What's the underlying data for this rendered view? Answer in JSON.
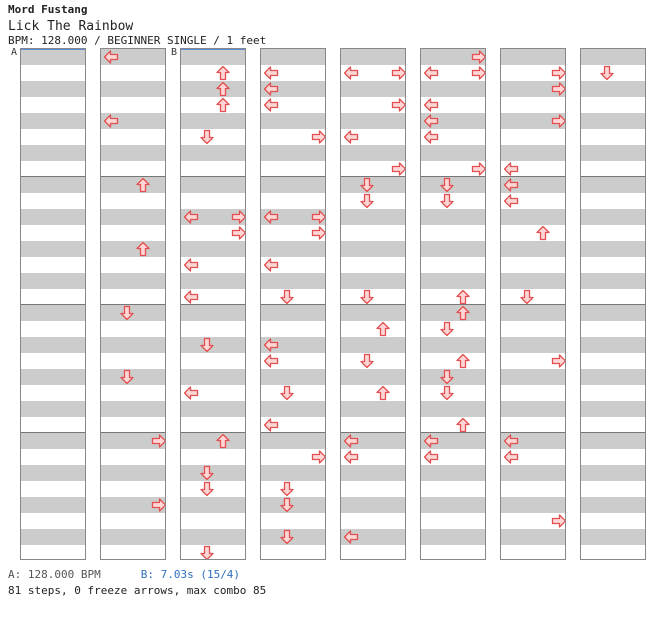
{
  "header": {
    "artist": "Mord Fustang",
    "title": "Lick The Rainbow",
    "info": "BPM: 128.000 / BEGINNER SINGLE / 1 feet"
  },
  "markers": {
    "a": "A",
    "b": "B"
  },
  "footer": {
    "bpm_a": "A: 128.000 BPM",
    "bpm_b": "B: 7.03s (15/4)",
    "stats": "81 steps, 0 freeze arrows, max combo 85"
  },
  "colors": {
    "arrow_fill": "#ffd6d6",
    "arrow_stroke": "#e05050",
    "stripe": "#cccccc"
  },
  "chart": {
    "columns": 8,
    "rows_per_column": 32,
    "lanes": [
      "left",
      "down",
      "up",
      "right"
    ],
    "notes": [
      [],
      [
        [
          0,
          "left"
        ],
        [
          4,
          "left"
        ],
        [
          8,
          "up"
        ],
        [
          12,
          "up"
        ],
        [
          16,
          "down"
        ],
        [
          20,
          "down"
        ],
        [
          24,
          "right"
        ],
        [
          28,
          "right"
        ]
      ],
      [
        [
          1,
          "up"
        ],
        [
          2,
          "up"
        ],
        [
          3,
          "up"
        ],
        [
          5,
          "down"
        ],
        [
          10,
          "left"
        ],
        [
          10,
          "right"
        ],
        [
          11,
          "right"
        ],
        [
          13,
          "left"
        ],
        [
          15,
          "left"
        ],
        [
          18,
          "down"
        ],
        [
          21,
          "left"
        ],
        [
          24,
          "up"
        ],
        [
          26,
          "down"
        ],
        [
          27,
          "down"
        ],
        [
          31,
          "down"
        ]
      ],
      [
        [
          1,
          "left"
        ],
        [
          2,
          "left"
        ],
        [
          3,
          "left"
        ],
        [
          5,
          "right"
        ],
        [
          10,
          "left"
        ],
        [
          10,
          "right"
        ],
        [
          11,
          "right"
        ],
        [
          13,
          "left"
        ],
        [
          15,
          "down"
        ],
        [
          18,
          "left"
        ],
        [
          19,
          "left"
        ],
        [
          21,
          "down"
        ],
        [
          23,
          "left"
        ],
        [
          25,
          "right"
        ],
        [
          27,
          "down"
        ],
        [
          28,
          "down"
        ],
        [
          30,
          "down"
        ]
      ],
      [
        [
          1,
          "left"
        ],
        [
          1,
          "right"
        ],
        [
          3,
          "right"
        ],
        [
          5,
          "left"
        ],
        [
          7,
          "right"
        ],
        [
          8,
          "down"
        ],
        [
          9,
          "down"
        ],
        [
          15,
          "down"
        ],
        [
          17,
          "up"
        ],
        [
          19,
          "down"
        ],
        [
          21,
          "up"
        ],
        [
          24,
          "left"
        ],
        [
          25,
          "left"
        ],
        [
          30,
          "left"
        ]
      ],
      [
        [
          0,
          "right"
        ],
        [
          1,
          "left"
        ],
        [
          1,
          "right"
        ],
        [
          3,
          "left"
        ],
        [
          4,
          "left"
        ],
        [
          5,
          "left"
        ],
        [
          7,
          "right"
        ],
        [
          8,
          "down"
        ],
        [
          9,
          "down"
        ],
        [
          15,
          "up"
        ],
        [
          16,
          "up"
        ],
        [
          17,
          "down"
        ],
        [
          19,
          "up"
        ],
        [
          20,
          "down"
        ],
        [
          21,
          "down"
        ],
        [
          23,
          "up"
        ],
        [
          24,
          "left"
        ],
        [
          25,
          "left"
        ]
      ],
      [
        [
          1,
          "right"
        ],
        [
          2,
          "right"
        ],
        [
          4,
          "right"
        ],
        [
          7,
          "left"
        ],
        [
          8,
          "left"
        ],
        [
          9,
          "left"
        ],
        [
          11,
          "up"
        ],
        [
          15,
          "down"
        ],
        [
          19,
          "right"
        ],
        [
          24,
          "left"
        ],
        [
          25,
          "left"
        ],
        [
          29,
          "right"
        ]
      ],
      [
        [
          1,
          "down"
        ]
      ]
    ]
  }
}
